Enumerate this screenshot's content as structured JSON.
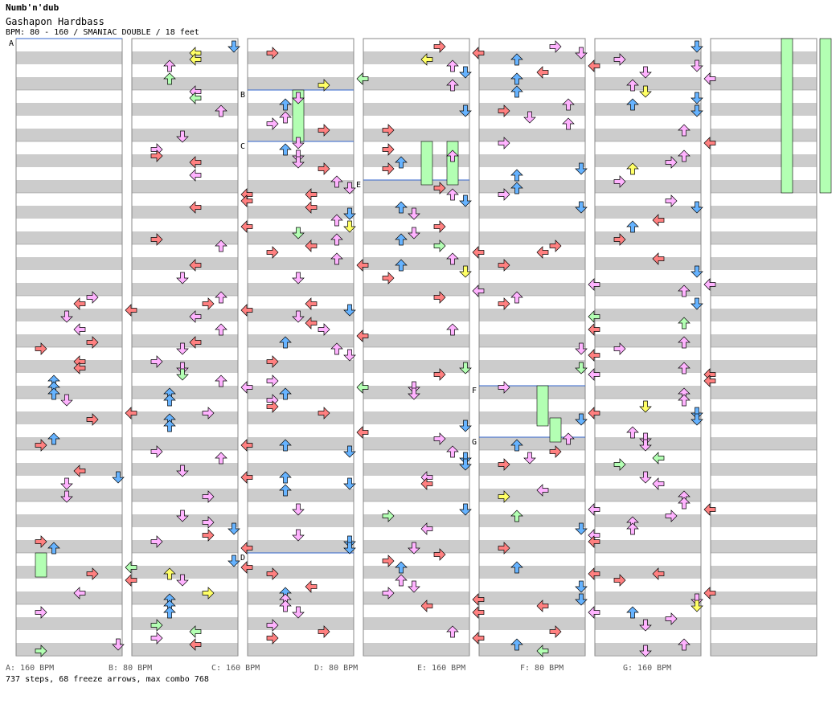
{
  "header": {
    "artist": "Numb'n'dub",
    "title": "Gashapon Hardbass",
    "info": "BPM: 80 - 160 / SMANIAC DOUBLE / 18 feet"
  },
  "bpm_markers": [
    {
      "label": "A",
      "bpm": "160"
    },
    {
      "label": "B",
      "bpm": "80"
    },
    {
      "label": "C",
      "bpm": "160"
    },
    {
      "label": "D",
      "bpm": "80"
    },
    {
      "label": "E",
      "bpm": "160"
    },
    {
      "label": "F",
      "bpm": "80"
    },
    {
      "label": "G",
      "bpm": "160"
    }
  ],
  "footer_labels": [
    "A: 160 BPM",
    "B: 80 BPM",
    "C: 160 BPM",
    "D: 80 BPM",
    "E: 160 BPM",
    "F: 80 BPM",
    "G: 160 BPM"
  ],
  "summary": "737 steps, 68 freeze arrows, max combo 768",
  "colors": {
    "red": "#ff8080",
    "blue": "#66b3ff",
    "pink": "#ffb3ff",
    "green": "#b3ffb3",
    "yellow": "#ffff66",
    "stripe": "#cccccc",
    "bpm_line": "#3366cc"
  }
}
